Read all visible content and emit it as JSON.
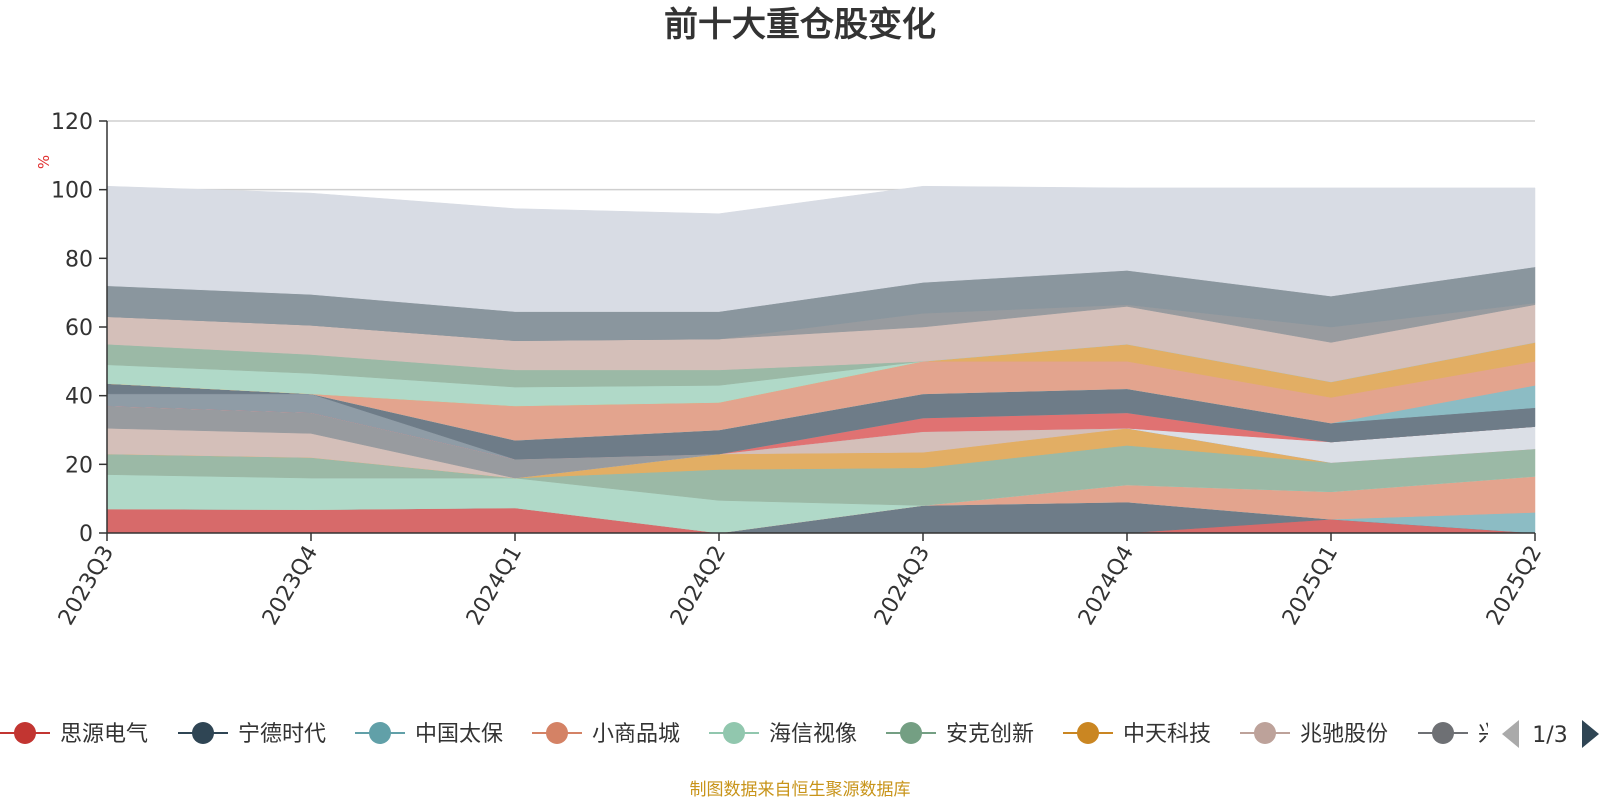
{
  "chart_data": {
    "type": "area",
    "stacked": true,
    "title": "前十大重仓股变化",
    "ylabel": "%",
    "ylim": [
      0,
      120
    ],
    "yticks": [
      0,
      20,
      40,
      60,
      80,
      100,
      120
    ],
    "grid": true,
    "categories": [
      "2023Q3",
      "2023Q4",
      "2024Q1",
      "2024Q2",
      "2024Q3",
      "2024Q4",
      "2025Q1",
      "2025Q2"
    ],
    "series": [
      {
        "name": "思源电气",
        "color": "#d76a6a",
        "values": [
          7,
          6.8,
          7.3,
          0,
          0,
          0,
          4,
          0
        ]
      },
      {
        "name": "宁德时代",
        "color": "#6e7c88",
        "values": [
          0,
          0,
          0,
          0,
          8,
          9,
          0,
          0
        ]
      },
      {
        "name": "中国太保",
        "color": "#8cbcc4",
        "values": [
          0,
          0,
          0,
          0,
          0,
          0,
          0,
          6
        ]
      },
      {
        "name": "小商品城",
        "color": "#e3a48e",
        "values": [
          0,
          0,
          0,
          0,
          0,
          5,
          8,
          10.5
        ]
      },
      {
        "name": "海信视像",
        "color": "#b0d9c8",
        "values": [
          10,
          9.2,
          8.7,
          9.5,
          0,
          0,
          0,
          0
        ]
      },
      {
        "name": "安克创新",
        "color": "#9bb9a6",
        "values": [
          6,
          6,
          0,
          9,
          11,
          11.5,
          8.5,
          8
        ]
      },
      {
        "name": "中天科技",
        "color": "#e2ae64",
        "values": [
          0,
          0,
          0,
          4.5,
          4.5,
          5,
          0,
          0
        ]
      },
      {
        "name": "兆驰股份",
        "color": "#d4bfb9",
        "values": [
          7.5,
          7,
          0,
          0,
          6,
          0,
          0,
          0
        ]
      },
      {
        "name": "",
        "color": "#989b9f",
        "values": [
          6.5,
          6,
          5.5,
          0,
          0,
          0,
          0,
          0
        ]
      },
      {
        "name": "",
        "color": "#dbdfe6",
        "values": [
          0,
          0,
          0,
          0,
          0,
          0,
          6,
          6.5
        ]
      },
      {
        "name": "",
        "color": "#e07272",
        "values": [
          0,
          0,
          0,
          0,
          4,
          4.5,
          0,
          0
        ]
      },
      {
        "name": "",
        "color": "#8f9ca6",
        "values": [
          3.5,
          5.5,
          0,
          0,
          0,
          0,
          0,
          0
        ]
      },
      {
        "name": "",
        "color": "#6e7c88",
        "values": [
          3,
          0,
          5.5,
          7,
          7,
          7,
          5.5,
          5.5
        ]
      },
      {
        "name": "",
        "color": "#8cbcc4",
        "values": [
          0,
          0,
          0,
          0,
          0,
          0,
          0,
          6.5
        ]
      },
      {
        "name": "",
        "color": "#e3a48e",
        "values": [
          0,
          0,
          10,
          8,
          9.5,
          8,
          7.5,
          7
        ]
      },
      {
        "name": "",
        "color": "#e2ae64",
        "values": [
          0,
          0,
          0,
          0,
          0,
          5,
          4.5,
          5.5
        ]
      },
      {
        "name": "",
        "color": "#b0d9c8",
        "values": [
          5.5,
          6,
          5.5,
          5,
          0,
          0,
          0,
          0
        ]
      },
      {
        "name": "",
        "color": "#9bb9a6",
        "values": [
          6,
          5.5,
          5,
          4.5,
          0,
          0,
          0,
          0
        ]
      },
      {
        "name": "",
        "color": "#d4bfb9",
        "values": [
          8,
          8.5,
          8.5,
          9,
          10,
          11,
          11.5,
          11
        ]
      },
      {
        "name": "",
        "color": "#989b9f",
        "values": [
          0,
          0,
          0,
          0,
          4,
          0.5,
          4.5,
          0.5
        ]
      },
      {
        "name": "",
        "color": "#8a969e",
        "values": [
          9,
          9,
          8.5,
          8,
          9,
          10,
          9,
          10.5
        ]
      },
      {
        "name": "",
        "color": "#d8dce4",
        "values": [
          29,
          29.5,
          30,
          28.5,
          28,
          24,
          31.5,
          23
        ]
      }
    ],
    "legend": {
      "position": "bottom",
      "items": [
        {
          "name": "思源电气",
          "color": "#c23531"
        },
        {
          "name": "宁德时代",
          "color": "#2f4554"
        },
        {
          "name": "中国太保",
          "color": "#61a0a8"
        },
        {
          "name": "小商品城",
          "color": "#d48265"
        },
        {
          "name": "海信视像",
          "color": "#91c7ae"
        },
        {
          "name": "安克创新",
          "color": "#749f83"
        },
        {
          "name": "中天科技",
          "color": "#ca8622"
        },
        {
          "name": "兆驰股份",
          "color": "#bda29a"
        },
        {
          "name": "兴",
          "color": "#6e7074"
        }
      ],
      "page": "1/3"
    },
    "source": "制图数据来自恒生聚源数据库"
  }
}
